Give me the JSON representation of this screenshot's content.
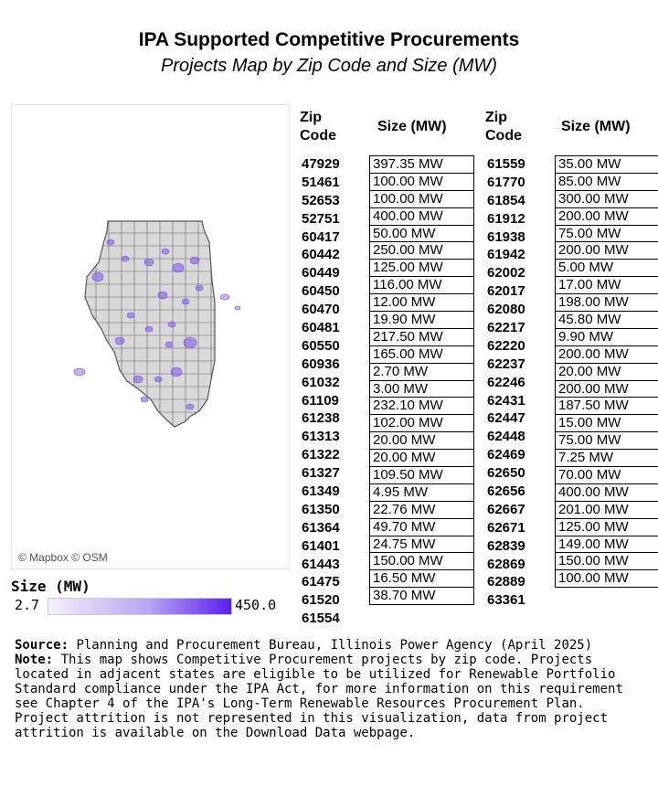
{
  "header": {
    "title": "IPA Supported Competitive Procurements",
    "subtitle": "Projects Map by Zip Code and Size (MW)"
  },
  "map": {
    "attribution": "© Mapbox © OSM",
    "base_fill": "#d9d9d9",
    "border_color": "#555555",
    "project_color": "#7b52e6"
  },
  "legend": {
    "title": "Size (MW)",
    "min": "2.7",
    "max": "450.0",
    "color_low": "#f4f0fb",
    "color_high": "#5a1ef0"
  },
  "table": {
    "zip_header": "Zip Code",
    "size_header": "Size (MW)",
    "left": [
      {
        "zip": "47929",
        "size": "397.35 MW"
      },
      {
        "zip": "51461",
        "size": "100.00 MW"
      },
      {
        "zip": "52653",
        "size": "100.00 MW"
      },
      {
        "zip": "52751",
        "size": "400.00 MW"
      },
      {
        "zip": "60417",
        "size": "50.00 MW"
      },
      {
        "zip": "60442",
        "size": "250.00 MW"
      },
      {
        "zip": "60449",
        "size": "125.00 MW"
      },
      {
        "zip": "60450",
        "size": "116.00 MW"
      },
      {
        "zip": "60470",
        "size": "12.00 MW"
      },
      {
        "zip": "60481",
        "size": "19.90 MW"
      },
      {
        "zip": "60550",
        "size": "217.50 MW"
      },
      {
        "zip": "60936",
        "size": "165.00 MW"
      },
      {
        "zip": "61032",
        "size": "2.70 MW"
      },
      {
        "zip": "61109",
        "size": "3.00 MW"
      },
      {
        "zip": "61238",
        "size": "232.10 MW"
      },
      {
        "zip": "61313",
        "size": "102.00 MW"
      },
      {
        "zip": "61322",
        "size": "20.00 MW"
      },
      {
        "zip": "61327",
        "size": "20.00 MW"
      },
      {
        "zip": "61349",
        "size": "109.50 MW"
      },
      {
        "zip": "61350",
        "size": "4.95 MW"
      },
      {
        "zip": "61364",
        "size": "22.76 MW"
      },
      {
        "zip": "61401",
        "size": "49.70 MW"
      },
      {
        "zip": "61443",
        "size": "24.75 MW"
      },
      {
        "zip": "61475",
        "size": "150.00 MW"
      },
      {
        "zip": "61520",
        "size": "16.50 MW"
      },
      {
        "zip": "61554",
        "size": "38.70 MW"
      }
    ],
    "right": [
      {
        "zip": "61559",
        "size": "35.00 MW"
      },
      {
        "zip": "61770",
        "size": "85.00 MW"
      },
      {
        "zip": "61854",
        "size": "300.00 MW"
      },
      {
        "zip": "61912",
        "size": "200.00 MW"
      },
      {
        "zip": "61938",
        "size": "75.00 MW"
      },
      {
        "zip": "61942",
        "size": "200.00 MW"
      },
      {
        "zip": "62002",
        "size": "5.00 MW"
      },
      {
        "zip": "62017",
        "size": "17.00 MW"
      },
      {
        "zip": "62080",
        "size": "198.00 MW"
      },
      {
        "zip": "62217",
        "size": "45.80 MW"
      },
      {
        "zip": "62220",
        "size": "9.90 MW"
      },
      {
        "zip": "62237",
        "size": "200.00 MW"
      },
      {
        "zip": "62246",
        "size": "20.00 MW"
      },
      {
        "zip": "62431",
        "size": "200.00 MW"
      },
      {
        "zip": "62447",
        "size": "187.50 MW"
      },
      {
        "zip": "62448",
        "size": "15.00 MW"
      },
      {
        "zip": "62469",
        "size": "75.00 MW"
      },
      {
        "zip": "62650",
        "size": "7.25 MW"
      },
      {
        "zip": "62656",
        "size": "70.00 MW"
      },
      {
        "zip": "62667",
        "size": "400.00 MW"
      },
      {
        "zip": "62671",
        "size": "201.00 MW"
      },
      {
        "zip": "62839",
        "size": "125.00 MW"
      },
      {
        "zip": "62869",
        "size": "149.00 MW"
      },
      {
        "zip": "62889",
        "size": "150.00 MW"
      },
      {
        "zip": "63361",
        "size": "100.00 MW"
      }
    ]
  },
  "footer": {
    "source_label": "Source:",
    "source_text": " Planning and Procurement Bureau, Illinois Power Agency (April 2025)",
    "note_label": "Note:",
    "note_text": " This map shows Competitive Procurement projects by zip code. Projects located in adjacent states are eligible to be utilized for Renewable Portfolio Standard compliance under the IPA Act, for more information on this requirement see Chapter 4 of the IPA's Long-Term Renewable Resources Procurement Plan. Project attrition is not represented in this visualization, data from project attrition is available on the Download Data webpage."
  }
}
